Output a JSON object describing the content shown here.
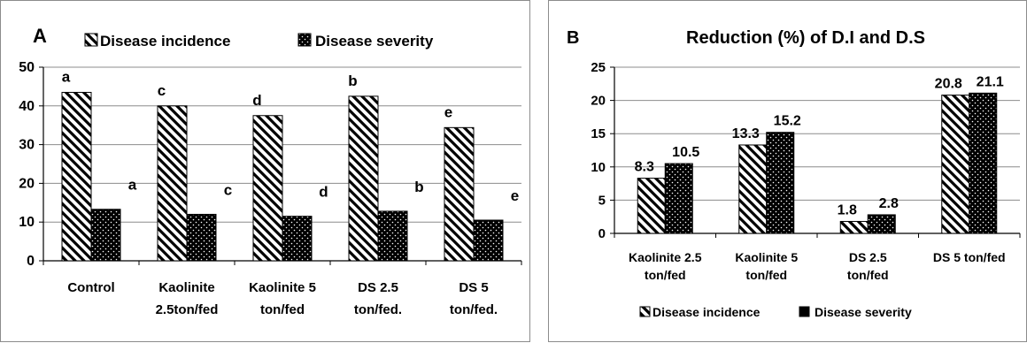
{
  "chart_data": [
    {
      "type": "bar",
      "panel_label": "A",
      "title": "",
      "xlabel": "",
      "ylabel": "",
      "categories": [
        [
          "Control"
        ],
        [
          "Kaolinite",
          "2.5ton/fed"
        ],
        [
          "Kaolinite 5",
          "ton/fed"
        ],
        [
          "DS 2.5",
          "ton/fed."
        ],
        [
          "DS 5",
          "ton/fed."
        ]
      ],
      "series": [
        {
          "name": "Disease incidence",
          "pattern": "diagonal-stripes",
          "values": [
            43.5,
            40,
            37.5,
            42.5,
            34.4
          ],
          "labels": [
            "a",
            "c",
            "d",
            "b",
            "e"
          ]
        },
        {
          "name": "Disease severity",
          "pattern": "black-dotted",
          "values": [
            13.3,
            12,
            11.5,
            12.8,
            10.5
          ],
          "labels": [
            "a",
            "c",
            "d",
            "b",
            "e"
          ]
        }
      ],
      "ylim": [
        0,
        50
      ],
      "yticks": [
        0,
        10,
        20,
        30,
        40,
        50
      ],
      "grid": true,
      "legend_position": "top"
    },
    {
      "type": "bar",
      "panel_label": "B",
      "title": "Reduction (%) of D.I and D.S",
      "xlabel": "",
      "ylabel": "",
      "categories": [
        [
          "Kaolinite 2.5",
          "ton/fed"
        ],
        [
          "Kaolinite 5",
          "ton/fed"
        ],
        [
          "DS 2.5",
          "ton/fed"
        ],
        [
          "DS 5 ton/fed"
        ]
      ],
      "series": [
        {
          "name": "Disease incidence",
          "pattern": "diagonal-stripes",
          "values": [
            8.3,
            13.3,
            1.8,
            20.8
          ],
          "labels": [
            "8.3",
            "13.3",
            "1.8",
            "20.8"
          ]
        },
        {
          "name": "Disease severity",
          "pattern": "black-dotted",
          "values": [
            10.5,
            15.2,
            2.8,
            21.1
          ],
          "labels": [
            "10.5",
            "15.2",
            "2.8",
            "21.1"
          ]
        }
      ],
      "ylim": [
        0,
        25
      ],
      "yticks": [
        0,
        5,
        10,
        15,
        20,
        25
      ],
      "grid": true,
      "legend_position": "bottom"
    }
  ]
}
